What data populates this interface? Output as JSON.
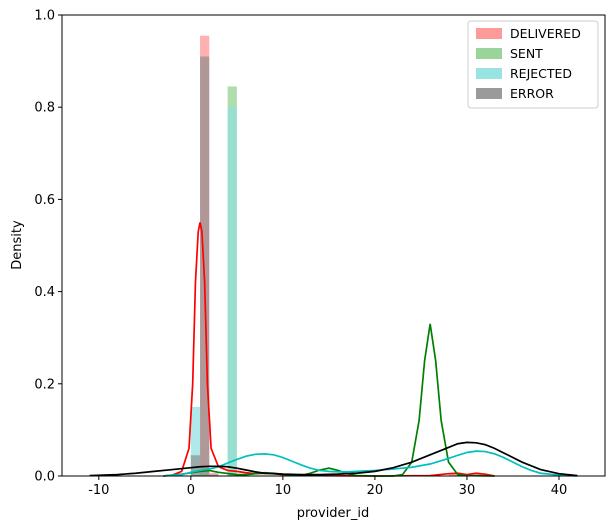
{
  "chart_data": {
    "type": "bar",
    "subtype": "histogram-with-kde",
    "xlabel": "provider_id",
    "ylabel": "Density",
    "xlim": [
      -14,
      45
    ],
    "ylim": [
      0,
      1.0
    ],
    "xticks": [
      -10,
      0,
      10,
      20,
      30,
      40
    ],
    "yticks": [
      0.0,
      0.2,
      0.4,
      0.6,
      0.8,
      1.0
    ],
    "grid": false,
    "legend_position": "top-right",
    "series": [
      {
        "name": "DELIVERED",
        "hist_color": "#ff8f8f",
        "kde_color": "#ff0000",
        "bars": [
          {
            "x0": 1.0,
            "x1": 2.0,
            "value": 0.955
          },
          {
            "x0": 2.0,
            "x1": 3.0,
            "value": 0.007
          },
          {
            "x0": 28.0,
            "x1": 29.0,
            "value": 0.004
          },
          {
            "x0": 31.0,
            "x1": 32.0,
            "value": 0.004
          }
        ],
        "kde": [
          [
            -3,
            0
          ],
          [
            -2,
            0.002
          ],
          [
            -1,
            0.01
          ],
          [
            -0.2,
            0.06
          ],
          [
            0.2,
            0.2
          ],
          [
            0.5,
            0.42
          ],
          [
            0.8,
            0.53
          ],
          [
            1.0,
            0.55
          ],
          [
            1.2,
            0.53
          ],
          [
            1.5,
            0.42
          ],
          [
            1.8,
            0.2
          ],
          [
            2.2,
            0.06
          ],
          [
            3,
            0.02
          ],
          [
            4,
            0.012
          ],
          [
            5,
            0.01
          ],
          [
            6,
            0.007
          ],
          [
            7,
            0.005
          ],
          [
            8,
            0.006
          ],
          [
            9,
            0.005
          ],
          [
            10,
            0.003
          ],
          [
            12,
            0.001
          ],
          [
            20,
            0
          ],
          [
            26,
            0.001
          ],
          [
            28,
            0.005
          ],
          [
            29,
            0.006
          ],
          [
            30,
            0.003
          ],
          [
            31,
            0.006
          ],
          [
            32,
            0.004
          ],
          [
            33,
            0
          ]
        ]
      },
      {
        "name": "SENT",
        "hist_color": "#8fcf8f",
        "kde_color": "#008000",
        "bars": [
          {
            "x0": 4.0,
            "x1": 5.0,
            "value": 0.845
          },
          {
            "x0": 1.0,
            "x1": 2.0,
            "value": 0.012
          }
        ],
        "kde": [
          [
            -3,
            0
          ],
          [
            -1,
            0.004
          ],
          [
            1,
            0.01
          ],
          [
            2,
            0.012
          ],
          [
            3,
            0.008
          ],
          [
            5,
            0.003
          ],
          [
            6,
            0.003
          ],
          [
            7,
            0.005
          ],
          [
            8,
            0.007
          ],
          [
            9,
            0.006
          ],
          [
            10,
            0.004
          ],
          [
            11,
            0.002
          ],
          [
            12,
            0.001
          ],
          [
            13,
            0.006
          ],
          [
            14,
            0.013
          ],
          [
            15,
            0.017
          ],
          [
            16,
            0.012
          ],
          [
            17,
            0.005
          ],
          [
            18,
            0.001
          ],
          [
            20,
            0
          ],
          [
            22,
            0
          ],
          [
            23,
            0.003
          ],
          [
            24,
            0.03
          ],
          [
            24.8,
            0.12
          ],
          [
            25.4,
            0.25
          ],
          [
            26,
            0.33
          ],
          [
            26.6,
            0.25
          ],
          [
            27.2,
            0.12
          ],
          [
            28,
            0.03
          ],
          [
            29,
            0.003
          ],
          [
            30,
            0.001
          ],
          [
            33,
            0
          ]
        ]
      },
      {
        "name": "REJECTED",
        "hist_color": "#8fe0e0",
        "kde_color": "#00bfbf",
        "bars": [
          {
            "x0": 0.0,
            "x1": 1.0,
            "value": 0.15
          },
          {
            "x0": 4.0,
            "x1": 5.0,
            "value": 0.8
          },
          {
            "x0": 30.0,
            "x1": 31.0,
            "value": 0.004
          }
        ],
        "kde": [
          [
            -3,
            0
          ],
          [
            -1,
            0.003
          ],
          [
            0,
            0.008
          ],
          [
            1,
            0.012
          ],
          [
            2,
            0.015
          ],
          [
            3,
            0.02
          ],
          [
            4,
            0.028
          ],
          [
            5,
            0.036
          ],
          [
            6,
            0.043
          ],
          [
            7,
            0.047
          ],
          [
            8,
            0.048
          ],
          [
            9,
            0.046
          ],
          [
            10,
            0.04
          ],
          [
            11,
            0.032
          ],
          [
            12,
            0.024
          ],
          [
            13,
            0.017
          ],
          [
            14,
            0.012
          ],
          [
            15,
            0.01
          ],
          [
            16,
            0.009
          ],
          [
            17,
            0.009
          ],
          [
            18,
            0.01
          ],
          [
            20,
            0.012
          ],
          [
            22,
            0.015
          ],
          [
            24,
            0.019
          ],
          [
            26,
            0.026
          ],
          [
            28,
            0.038
          ],
          [
            29,
            0.045
          ],
          [
            30,
            0.051
          ],
          [
            31,
            0.054
          ],
          [
            32,
            0.053
          ],
          [
            33,
            0.048
          ],
          [
            34,
            0.04
          ],
          [
            35,
            0.03
          ],
          [
            36,
            0.02
          ],
          [
            37,
            0.012
          ],
          [
            38,
            0.006
          ],
          [
            40,
            0.002
          ],
          [
            42,
            0
          ]
        ]
      },
      {
        "name": "ERROR",
        "hist_color": "#8f8f8f",
        "kde_color": "#000000",
        "bars": [
          {
            "x0": 0.0,
            "x1": 1.0,
            "value": 0.045
          },
          {
            "x0": 1.0,
            "x1": 2.0,
            "value": 0.91
          },
          {
            "x0": 2.0,
            "x1": 3.0,
            "value": 0.003
          },
          {
            "x0": 4.0,
            "x1": 5.0,
            "value": 0.003
          },
          {
            "x0": 29.0,
            "x1": 30.0,
            "value": 0.003
          }
        ],
        "kde": [
          [
            -11,
            0.001
          ],
          [
            -8,
            0.003
          ],
          [
            -6,
            0.006
          ],
          [
            -4,
            0.01
          ],
          [
            -2,
            0.014
          ],
          [
            0,
            0.018
          ],
          [
            1,
            0.02
          ],
          [
            2,
            0.021
          ],
          [
            3,
            0.021
          ],
          [
            4,
            0.02
          ],
          [
            5,
            0.017
          ],
          [
            6,
            0.013
          ],
          [
            7,
            0.009
          ],
          [
            8,
            0.006
          ],
          [
            10,
            0.004
          ],
          [
            12,
            0.003
          ],
          [
            14,
            0.003
          ],
          [
            16,
            0.004
          ],
          [
            18,
            0.006
          ],
          [
            20,
            0.01
          ],
          [
            22,
            0.018
          ],
          [
            24,
            0.03
          ],
          [
            26,
            0.046
          ],
          [
            28,
            0.062
          ],
          [
            29,
            0.07
          ],
          [
            30,
            0.073
          ],
          [
            31,
            0.072
          ],
          [
            32,
            0.068
          ],
          [
            33,
            0.06
          ],
          [
            34,
            0.05
          ],
          [
            36,
            0.03
          ],
          [
            38,
            0.014
          ],
          [
            40,
            0.005
          ],
          [
            42,
            0.001
          ]
        ]
      }
    ]
  }
}
